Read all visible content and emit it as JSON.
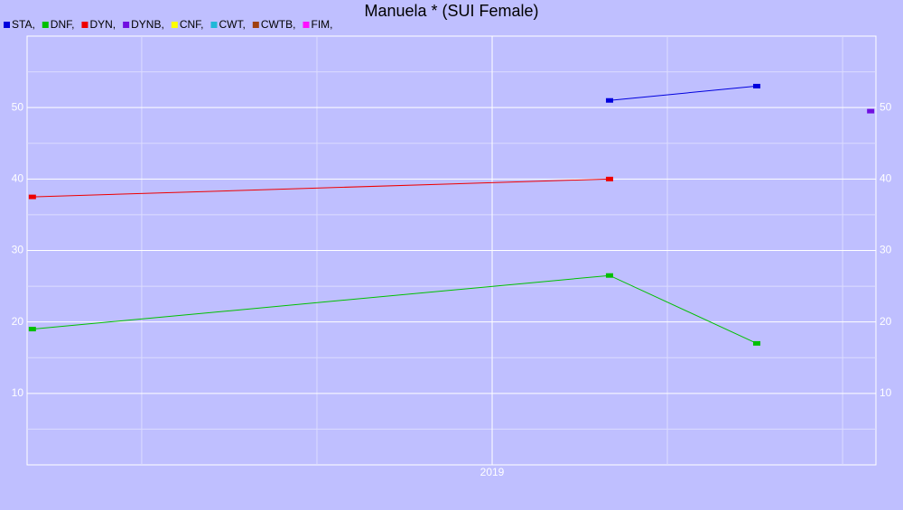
{
  "chart_data": {
    "type": "line",
    "title": "Manuela * (SUI Female)",
    "xlim": [
      2017.673,
      2020.095
    ],
    "xticks": [
      {
        "value": 2019,
        "label": "2019"
      }
    ],
    "x_minor_ticks": [
      2018,
      2018.5,
      2019.5,
      2020
    ],
    "ylim": [
      0,
      60
    ],
    "yticks": [
      10,
      20,
      30,
      40,
      50
    ],
    "y_minor_ticks": [
      5,
      15,
      25,
      35,
      45,
      55
    ],
    "grid": true,
    "series": [
      {
        "name": "STA,",
        "color": "#0000dd",
        "x": [
          2019.335,
          2019.755
        ],
        "values": [
          51.0,
          53.0
        ]
      },
      {
        "name": "DNF,",
        "color": "#00c000",
        "x": [
          2017.688,
          2019.335,
          2019.755
        ],
        "values": [
          19.0,
          26.5,
          17.0
        ]
      },
      {
        "name": "DYN,",
        "color": "#ee0000",
        "x": [
          2017.688,
          2019.335
        ],
        "values": [
          37.5,
          40.0
        ]
      },
      {
        "name": "DYNB,",
        "color": "#7010e0",
        "x": [
          2020.08
        ],
        "values": [
          49.5
        ]
      },
      {
        "name": "CNF,",
        "color": "#ffff00",
        "x": [],
        "values": []
      },
      {
        "name": "CWT,",
        "color": "#20b8d8",
        "x": [],
        "values": []
      },
      {
        "name": "CWTB,",
        "color": "#a04010",
        "x": [],
        "values": []
      },
      {
        "name": "FIM,",
        "color": "#ff10ff",
        "x": [],
        "values": []
      }
    ]
  }
}
